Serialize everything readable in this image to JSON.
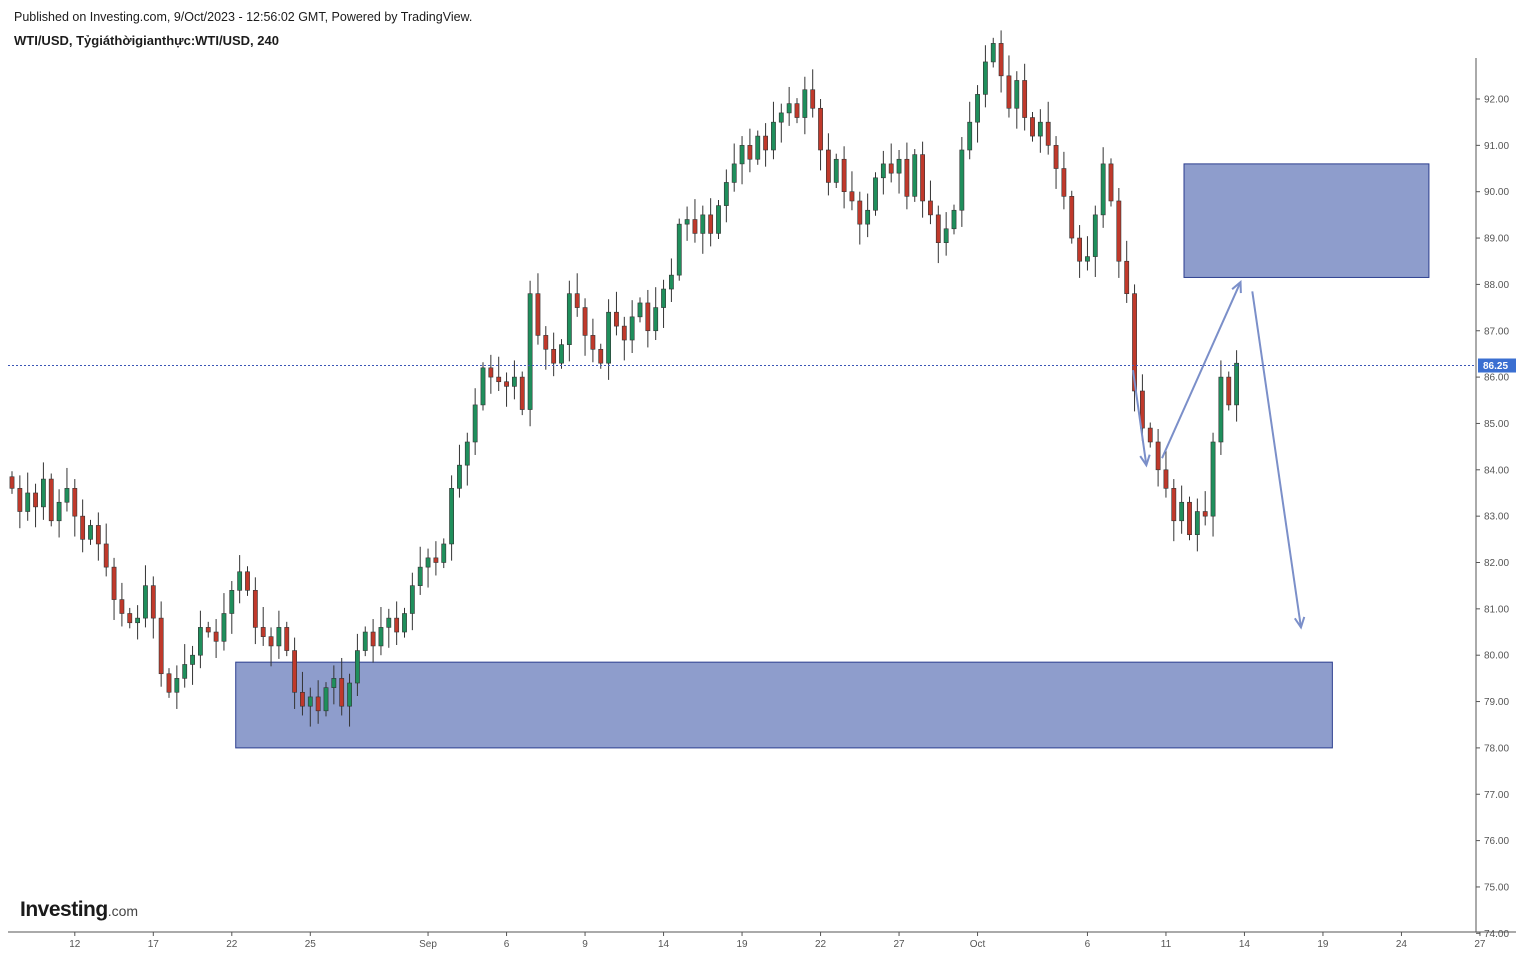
{
  "header": {
    "published": "Published on Investing.com, 9/Oct/2023 - 12:56:02 GMT, Powered by TradingView.",
    "symbol": "WTI/USD, Tỷgiáthờigianthực:WTI/USD, 240"
  },
  "logo": {
    "main": "Investing",
    "domain": ".com"
  },
  "colors": {
    "up": "#1f8f5c",
    "down": "#c0392b",
    "zone_fill": "#8e9dcc",
    "zone_border": "#2c3e8f",
    "arrow": "#7b8fc9",
    "price_line": "#3b55b5",
    "price_label_bg": "#3b6fd1"
  },
  "chart_data": {
    "type": "candlestick",
    "timeframe": "240",
    "ylim": [
      74.0,
      92.9
    ],
    "xlim": [
      -2,
      184
    ],
    "y_ticks": [
      "92.00",
      "91.00",
      "90.00",
      "89.00",
      "88.00",
      "87.00",
      "86.00",
      "85.00",
      "84.00",
      "83.00",
      "82.00",
      "81.00",
      "80.00",
      "79.00",
      "78.00",
      "77.00",
      "76.00",
      "75.00",
      "74.00"
    ],
    "x_ticks": [
      {
        "label": "12",
        "bar": 8
      },
      {
        "label": "17",
        "bar": 18
      },
      {
        "label": "22",
        "bar": 28
      },
      {
        "label": "25",
        "bar": 38
      },
      {
        "label": "Sep",
        "bar": 53
      },
      {
        "label": "6",
        "bar": 63
      },
      {
        "label": "9",
        "bar": 73
      },
      {
        "label": "14",
        "bar": 83
      },
      {
        "label": "19",
        "bar": 93
      },
      {
        "label": "22",
        "bar": 103
      },
      {
        "label": "27",
        "bar": 113
      },
      {
        "label": "Oct",
        "bar": 123
      },
      {
        "label": "6",
        "bar": 137
      },
      {
        "label": "11",
        "bar": 147
      },
      {
        "label": "14",
        "bar": 157
      },
      {
        "label": "19",
        "bar": 167
      },
      {
        "label": "24",
        "bar": 177
      },
      {
        "label": "27",
        "bar": 187
      }
    ],
    "last_price": "86.25",
    "last_price_value": 86.25,
    "zones": [
      {
        "bar_start": 149.3,
        "bar_end": 180.5,
        "top": 90.6,
        "bottom": 88.15
      },
      {
        "bar_start": 28.5,
        "bar_end": 168.2,
        "top": 79.85,
        "bottom": 78.0
      }
    ],
    "arrows": [
      {
        "from": [
          142.8,
          86.15
        ],
        "to": [
          144.5,
          84.1
        ]
      },
      {
        "from": [
          146.5,
          84.25
        ],
        "to": [
          156.5,
          88.05
        ]
      },
      {
        "from": [
          158.0,
          87.85
        ],
        "to": [
          164.2,
          80.6
        ]
      }
    ],
    "close": [
      83.6,
      83.1,
      83.5,
      83.2,
      83.8,
      82.9,
      83.3,
      83.6,
      83.0,
      82.5,
      82.8,
      82.4,
      81.9,
      81.2,
      80.9,
      80.7,
      80.8,
      81.5,
      80.8,
      79.6,
      79.2,
      79.5,
      79.8,
      80.0,
      80.6,
      80.5,
      80.3,
      80.9,
      81.4,
      81.8,
      81.4,
      80.6,
      80.4,
      80.2,
      80.6,
      80.1,
      79.2,
      78.9,
      79.1,
      78.8,
      79.3,
      79.5,
      78.9,
      79.4,
      80.1,
      80.5,
      80.2,
      80.6,
      80.8,
      80.5,
      80.9,
      81.5,
      81.9,
      82.1,
      82.0,
      82.4,
      83.6,
      84.1,
      84.6,
      85.4,
      86.2,
      86.0,
      85.9,
      85.8,
      86.0,
      85.3,
      87.8,
      86.9,
      86.6,
      86.3,
      86.7,
      87.8,
      87.5,
      86.9,
      86.6,
      86.3,
      87.4,
      87.1,
      86.8,
      87.3,
      87.6,
      87.0,
      87.5,
      87.9,
      88.2,
      89.3,
      89.4,
      89.1,
      89.5,
      89.1,
      89.7,
      90.2,
      90.6,
      91.0,
      90.7,
      91.2,
      90.9,
      91.5,
      91.7,
      91.9,
      91.6,
      92.2,
      91.8,
      90.9,
      90.2,
      90.7,
      90.0,
      89.8,
      89.3,
      89.6,
      90.3,
      90.6,
      90.4,
      90.7,
      89.9,
      90.8,
      89.8,
      89.5,
      88.9,
      89.2,
      89.6,
      90.9,
      91.5,
      92.1,
      92.8,
      93.2,
      92.5,
      91.8,
      92.4,
      91.6,
      91.2,
      91.5,
      91.0,
      90.5,
      89.9,
      89.0,
      88.5,
      88.6,
      89.5,
      90.6,
      89.8,
      88.5,
      87.8,
      85.7,
      84.9,
      84.6,
      84.0,
      83.6,
      82.9,
      83.3,
      82.6,
      83.1,
      83.0,
      84.6,
      86.0,
      85.4,
      86.3
    ]
  }
}
